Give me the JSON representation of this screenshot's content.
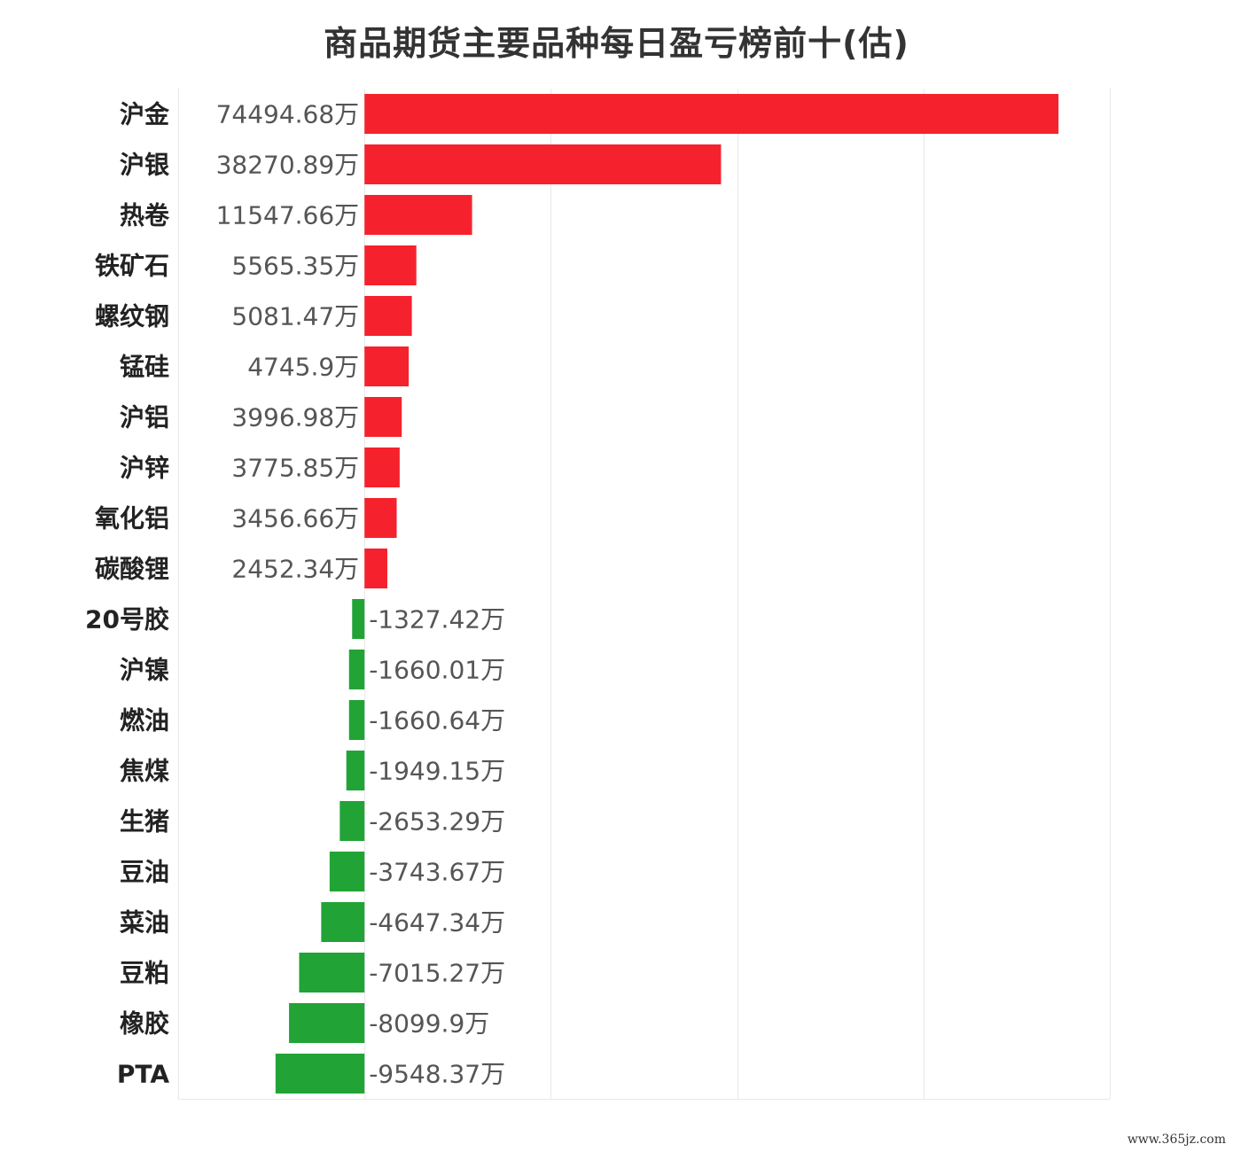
{
  "chart_data": {
    "type": "bar",
    "orientation": "horizontal",
    "title": "商品期货主要品种每日盈亏榜前十(估)",
    "unit_suffix": "万",
    "categories": [
      "沪金",
      "沪银",
      "热卷",
      "铁矿石",
      "螺纹钢",
      "锰硅",
      "沪铝",
      "沪锌",
      "氧化铝",
      "碳酸锂",
      "20号胶",
      "沪镍",
      "燃油",
      "焦煤",
      "生猪",
      "豆油",
      "菜油",
      "豆粕",
      "橡胶",
      "PTA"
    ],
    "values": [
      74494.68,
      38270.89,
      11547.66,
      5565.35,
      5081.47,
      4745.9,
      3996.98,
      3775.85,
      3456.66,
      2452.34,
      -1327.42,
      -1660.01,
      -1660.64,
      -1949.15,
      -2653.29,
      -3743.67,
      -4647.34,
      -7015.27,
      -8099.9,
      -9548.37
    ],
    "value_labels": [
      "74494.68万",
      "38270.89万",
      "11547.66万",
      "5565.35万",
      "5081.47万",
      "4745.9万",
      "3996.98万",
      "3775.85万",
      "3456.66万",
      "2452.34万",
      "-1327.42万",
      "-1660.01万",
      "-1660.64万",
      "-1949.15万",
      "-2653.29万",
      "-3743.67万",
      "-4647.34万",
      "-7015.27万",
      "-8099.9万",
      "-9548.37万"
    ],
    "xlim": [
      -20000,
      80000
    ],
    "grid": true,
    "colors": {
      "positive": "#f5222d",
      "negative": "#21a336",
      "grid": "#e8e8e8"
    },
    "xlabel": "",
    "ylabel": ""
  },
  "watermark": "www.365jz.com"
}
